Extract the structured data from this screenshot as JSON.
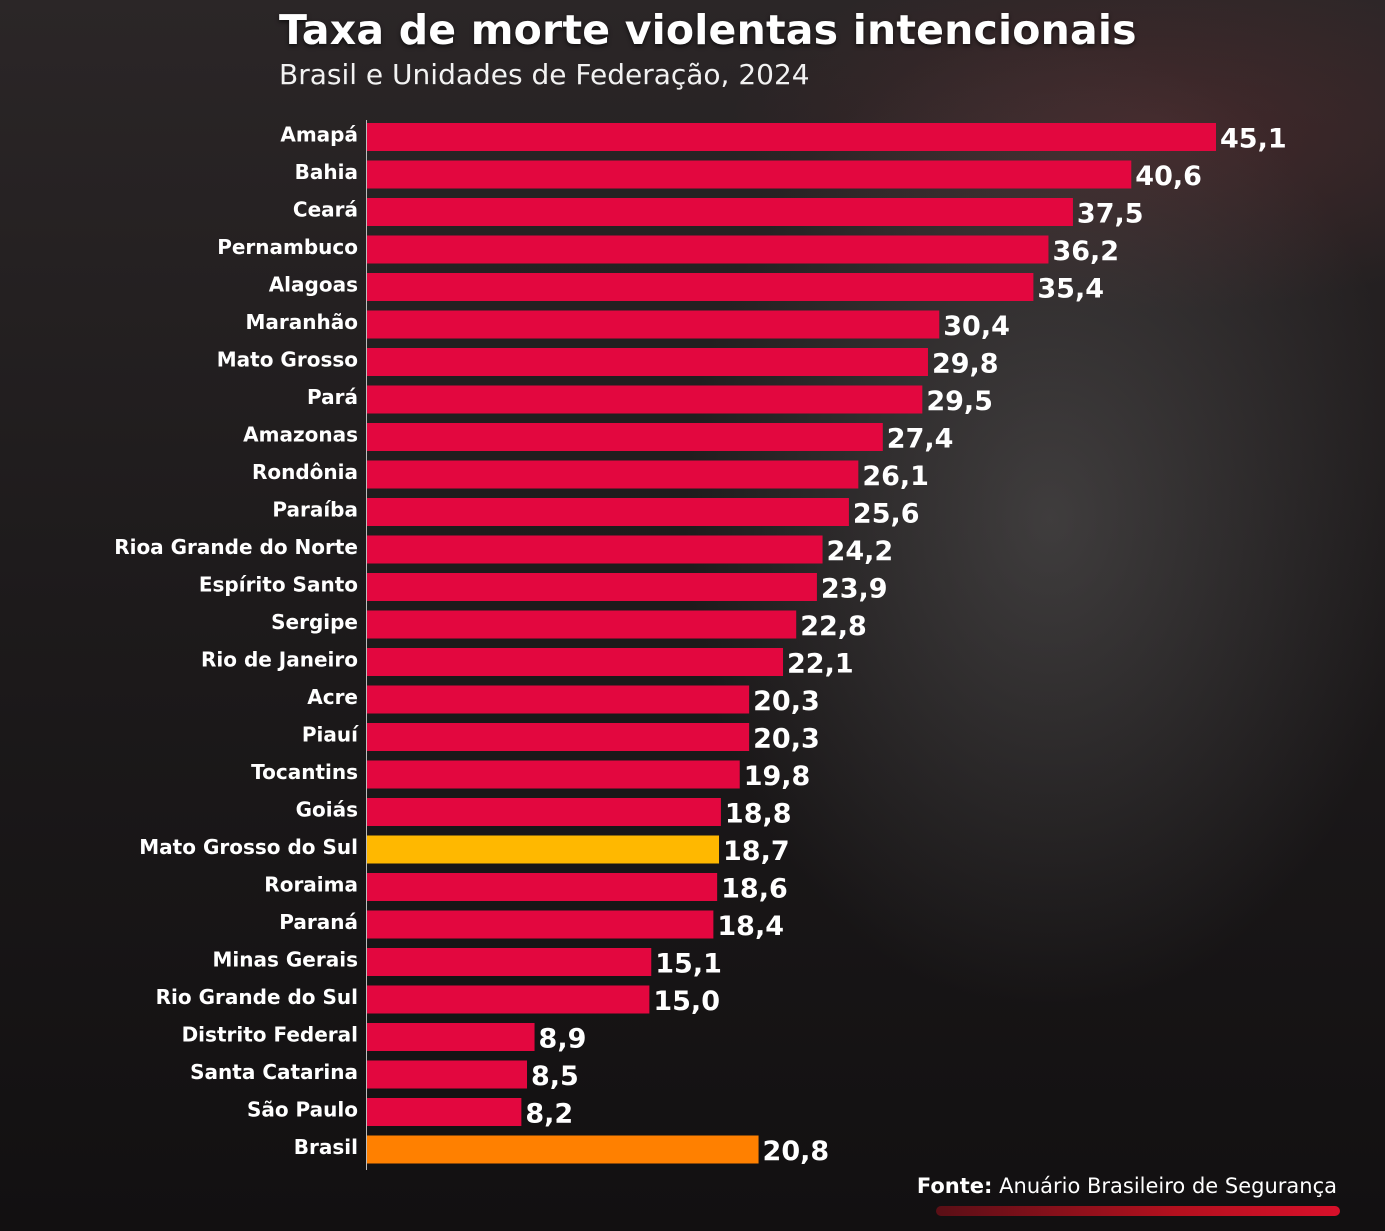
{
  "header": {
    "title": "Taxa de morte violentas intencionais",
    "subtitle": "Brasil e Unidades de Federação, 2024"
  },
  "source": {
    "label": "Fonte:",
    "text": "Anuário Brasileiro de Segurança"
  },
  "colors": {
    "default": "#e3073f",
    "highlight": "#ffb800",
    "national": "#ff8000"
  },
  "chart_data": {
    "type": "bar",
    "orientation": "horizontal",
    "title": "Taxa de morte violentas intencionais",
    "subtitle": "Brasil e Unidades de Federação, 2024",
    "xlim": [
      0,
      45.1
    ],
    "grid": false,
    "categories": [
      "Amapá",
      "Bahia",
      "Ceará",
      "Pernambuco",
      "Alagoas",
      "Maranhão",
      "Mato Grosso",
      "Pará",
      "Amazonas",
      "Rondônia",
      "Paraíba",
      "Rioa Grande do Norte",
      "Espírito Santo",
      "Sergipe",
      "Rio de Janeiro",
      "Acre",
      "Piauí",
      "Tocantins",
      "Goiás",
      "Mato Grosso do Sul",
      "Roraima",
      "Paraná",
      "Minas Gerais",
      "Rio Grande do Sul",
      "Distrito Federal",
      "Santa Catarina",
      "São Paulo",
      "Brasil"
    ],
    "values": [
      45.1,
      40.6,
      37.5,
      36.2,
      35.4,
      30.4,
      29.8,
      29.5,
      27.4,
      26.1,
      25.6,
      24.2,
      23.9,
      22.8,
      22.1,
      20.3,
      20.3,
      19.8,
      18.8,
      18.7,
      18.6,
      18.4,
      15.1,
      15.0,
      8.9,
      8.5,
      8.2,
      20.8
    ],
    "value_labels": [
      "45,1",
      "40,6",
      "37,5",
      "36,2",
      "35,4",
      "30,4",
      "29,8",
      "29,5",
      "27,4",
      "26,1",
      "25,6",
      "24,2",
      "23,9",
      "22,8",
      "22,1",
      "20,3",
      "20,3",
      "19,8",
      "18,8",
      "18,7",
      "18,6",
      "18,4",
      "15,1",
      "15,0",
      "8,9",
      "8,5",
      "8,2",
      "20,8"
    ],
    "highlight": [
      "Mato Grosso do Sul"
    ],
    "national": [
      "Brasil"
    ]
  }
}
